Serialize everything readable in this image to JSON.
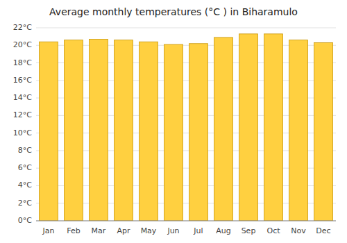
{
  "chart_data": {
    "type": "bar",
    "title": "Average monthly temperatures (°C ) in Biharamulo",
    "categories": [
      "Jan",
      "Feb",
      "Mar",
      "Apr",
      "May",
      "Jun",
      "Jul",
      "Aug",
      "Sep",
      "Oct",
      "Nov",
      "Dec"
    ],
    "values": [
      20.4,
      20.6,
      20.7,
      20.6,
      20.4,
      20.1,
      20.2,
      20.9,
      21.3,
      21.3,
      20.6,
      20.3
    ],
    "color": "#FFD040",
    "ylim": [
      0,
      22
    ],
    "yticks": [
      {
        "value": 0,
        "label": "0°C"
      },
      {
        "value": 2,
        "label": "2°C"
      },
      {
        "value": 4,
        "label": "4°C"
      },
      {
        "value": 6,
        "label": "6°C"
      },
      {
        "value": 8,
        "label": "8°C"
      },
      {
        "value": 10,
        "label": "10°C"
      },
      {
        "value": 12,
        "label": "12°C"
      },
      {
        "value": 14,
        "label": "14°C"
      },
      {
        "value": 16,
        "label": "16°C"
      },
      {
        "value": 18,
        "label": "18°C"
      },
      {
        "value": 20,
        "label": "20°C"
      },
      {
        "value": 22,
        "label": "22°C"
      }
    ],
    "grid": true
  }
}
